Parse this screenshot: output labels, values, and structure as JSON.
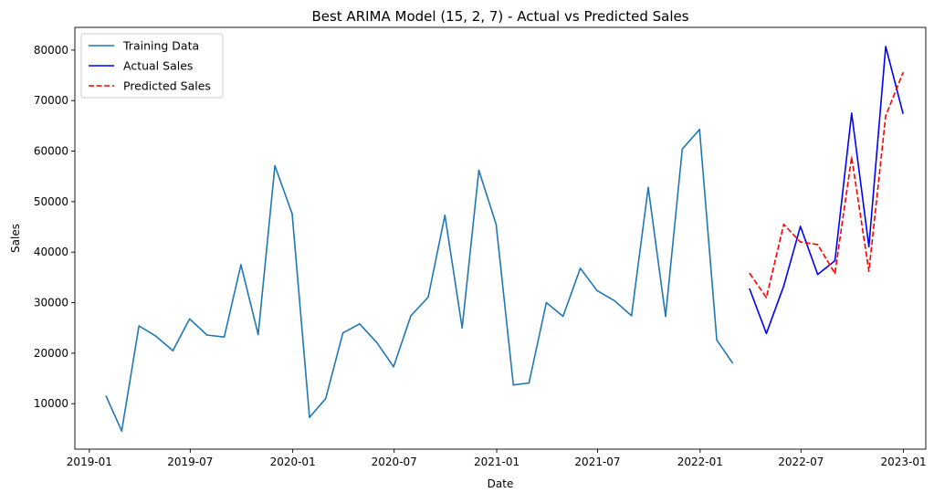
{
  "chart_data": {
    "type": "line",
    "title": "Best ARIMA Model (15, 2, 7) - Actual vs Predicted Sales",
    "xlabel": "Date",
    "ylabel": "Sales",
    "xlim": [
      "2018-12-06",
      "2023-02-10"
    ],
    "ylim": [
      1000,
      84500
    ],
    "x_ticks": [
      "2019-01",
      "2019-07",
      "2020-01",
      "2020-07",
      "2021-01",
      "2021-07",
      "2022-01",
      "2022-07",
      "2023-01"
    ],
    "y_ticks": [
      10000,
      20000,
      30000,
      40000,
      50000,
      60000,
      70000,
      80000
    ],
    "grid": false,
    "legend_position": "top-left",
    "series": [
      {
        "name": "Training Data",
        "color": "#1f77b4",
        "style": "solid",
        "x": [
          "2019-01-31",
          "2019-02-28",
          "2019-03-31",
          "2019-04-30",
          "2019-05-31",
          "2019-06-30",
          "2019-07-31",
          "2019-08-31",
          "2019-09-30",
          "2019-10-31",
          "2019-11-30",
          "2019-12-31",
          "2020-01-31",
          "2020-02-29",
          "2020-03-31",
          "2020-04-30",
          "2020-05-31",
          "2020-06-30",
          "2020-07-31",
          "2020-08-31",
          "2020-09-30",
          "2020-10-31",
          "2020-11-30",
          "2020-12-31",
          "2021-01-31",
          "2021-02-28",
          "2021-03-31",
          "2021-04-30",
          "2021-05-31",
          "2021-06-30",
          "2021-07-31",
          "2021-08-31",
          "2021-09-30",
          "2021-10-31",
          "2021-11-30",
          "2021-12-31",
          "2022-01-31",
          "2022-02-28"
        ],
        "y": [
          11500,
          4600,
          25400,
          23400,
          20500,
          26800,
          23600,
          23200,
          37500,
          23700,
          57100,
          47600,
          7300,
          11000,
          24000,
          25800,
          22100,
          17300,
          27400,
          31100,
          47300,
          25000,
          56200,
          45500,
          13700,
          14100,
          30000,
          27300,
          36800,
          32400,
          30400,
          27400,
          52800,
          27300,
          60400,
          64300,
          22600,
          18100
        ]
      },
      {
        "name": "Actual Sales",
        "color": "#0000ff",
        "style": "solid",
        "x": [
          "2022-03-31",
          "2022-04-30",
          "2022-05-31",
          "2022-06-30",
          "2022-07-31",
          "2022-08-31",
          "2022-09-30",
          "2022-10-31",
          "2022-11-30",
          "2022-12-31"
        ],
        "y": [
          32700,
          23900,
          33300,
          45100,
          35600,
          38300,
          67500,
          41100,
          80700,
          67500
        ]
      },
      {
        "name": "Predicted Sales",
        "color": "#ff0000",
        "style": "dashed",
        "x": [
          "2022-03-31",
          "2022-04-30",
          "2022-05-31",
          "2022-06-30",
          "2022-07-31",
          "2022-08-31",
          "2022-09-30",
          "2022-10-31",
          "2022-11-30",
          "2022-12-31"
        ],
        "y": [
          35800,
          31000,
          45500,
          42000,
          41500,
          35800,
          58800,
          36200,
          67000,
          75500
        ]
      }
    ]
  }
}
